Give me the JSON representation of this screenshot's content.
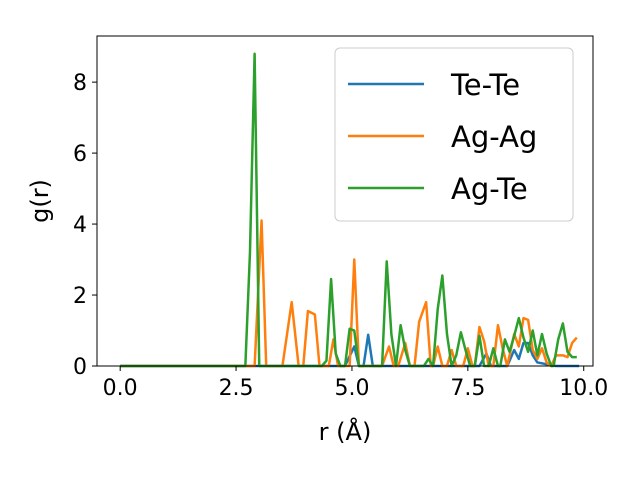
{
  "chart_data": {
    "type": "line",
    "xlabel": "r (Å)",
    "ylabel": "g(r)",
    "xlim": [
      -0.5,
      10.2
    ],
    "ylim": [
      0,
      9.3
    ],
    "xticks": [
      0.0,
      2.5,
      5.0,
      7.5,
      10.0
    ],
    "xtick_labels": [
      "0.0",
      "2.5",
      "5.0",
      "7.5",
      "10.0"
    ],
    "yticks": [
      0,
      2,
      4,
      6,
      8
    ],
    "ytick_labels": [
      "0",
      "2",
      "4",
      "6",
      "8"
    ],
    "grid": false,
    "legend_position": "top-right",
    "series": [
      {
        "name": "Te-Te",
        "color": "#1f77b4",
        "points": [
          [
            0.0,
            0
          ],
          [
            4.85,
            0
          ],
          [
            5.05,
            0.55
          ],
          [
            5.15,
            0
          ],
          [
            5.25,
            0
          ],
          [
            5.35,
            0.88
          ],
          [
            5.45,
            0
          ],
          [
            7.75,
            0
          ],
          [
            7.9,
            0.35
          ],
          [
            8.0,
            0
          ],
          [
            8.35,
            0
          ],
          [
            8.5,
            0.45
          ],
          [
            8.6,
            0.2
          ],
          [
            8.7,
            0.65
          ],
          [
            8.8,
            0.65
          ],
          [
            8.9,
            0.3
          ],
          [
            9.0,
            0.1
          ],
          [
            9.2,
            0.05
          ],
          [
            9.4,
            0
          ],
          [
            9.9,
            0
          ]
        ]
      },
      {
        "name": "Ag-Ag",
        "color": "#ff7f0e",
        "points": [
          [
            0.0,
            0
          ],
          [
            2.9,
            0
          ],
          [
            3.05,
            4.1
          ],
          [
            3.15,
            0
          ],
          [
            3.5,
            0
          ],
          [
            3.7,
            1.8
          ],
          [
            3.85,
            0
          ],
          [
            3.95,
            0
          ],
          [
            4.05,
            1.55
          ],
          [
            4.2,
            1.45
          ],
          [
            4.3,
            0
          ],
          [
            4.5,
            0
          ],
          [
            4.6,
            0.75
          ],
          [
            4.7,
            0
          ],
          [
            4.95,
            0
          ],
          [
            5.05,
            3.0
          ],
          [
            5.15,
            0
          ],
          [
            5.65,
            0
          ],
          [
            5.8,
            0.55
          ],
          [
            5.9,
            0
          ],
          [
            6.0,
            0
          ],
          [
            6.15,
            0.65
          ],
          [
            6.25,
            0
          ],
          [
            6.35,
            0
          ],
          [
            6.45,
            1.25
          ],
          [
            6.6,
            1.8
          ],
          [
            6.7,
            0
          ],
          [
            6.75,
            0
          ],
          [
            6.85,
            0.55
          ],
          [
            6.95,
            0
          ],
          [
            7.05,
            0
          ],
          [
            7.15,
            0.45
          ],
          [
            7.25,
            0
          ],
          [
            7.4,
            0
          ],
          [
            7.5,
            0.5
          ],
          [
            7.6,
            0
          ],
          [
            7.65,
            0
          ],
          [
            7.75,
            1.1
          ],
          [
            7.85,
            0.7
          ],
          [
            7.95,
            0
          ],
          [
            8.05,
            0
          ],
          [
            8.15,
            1.15
          ],
          [
            8.25,
            0.5
          ],
          [
            8.35,
            0
          ],
          [
            8.5,
            0.9
          ],
          [
            8.6,
            0.55
          ],
          [
            8.7,
            1.35
          ],
          [
            8.8,
            1.3
          ],
          [
            8.9,
            0.45
          ],
          [
            9.0,
            0.2
          ],
          [
            9.1,
            0.5
          ],
          [
            9.2,
            0.1
          ],
          [
            9.3,
            0
          ],
          [
            9.4,
            0.3
          ],
          [
            9.55,
            0.3
          ],
          [
            9.65,
            0.25
          ],
          [
            9.75,
            0.65
          ],
          [
            9.85,
            0.8
          ]
        ]
      },
      {
        "name": "Ag-Te",
        "color": "#2ca02c",
        "points": [
          [
            0.0,
            0
          ],
          [
            2.7,
            0
          ],
          [
            2.8,
            3.2
          ],
          [
            2.9,
            8.8
          ],
          [
            3.0,
            0
          ],
          [
            4.35,
            0
          ],
          [
            4.45,
            0.15
          ],
          [
            4.55,
            2.45
          ],
          [
            4.65,
            0.35
          ],
          [
            4.75,
            0
          ],
          [
            4.85,
            0
          ],
          [
            4.95,
            1.05
          ],
          [
            5.05,
            1.0
          ],
          [
            5.15,
            0
          ],
          [
            5.65,
            0
          ],
          [
            5.75,
            2.95
          ],
          [
            5.85,
            0.9
          ],
          [
            5.95,
            0
          ],
          [
            6.05,
            1.15
          ],
          [
            6.15,
            0.45
          ],
          [
            6.25,
            0
          ],
          [
            6.55,
            0
          ],
          [
            6.65,
            0.2
          ],
          [
            6.75,
            0
          ],
          [
            6.85,
            1.6
          ],
          [
            6.95,
            2.55
          ],
          [
            7.05,
            0.9
          ],
          [
            7.15,
            0
          ],
          [
            7.25,
            0.3
          ],
          [
            7.35,
            0.95
          ],
          [
            7.45,
            0.45
          ],
          [
            7.55,
            0
          ],
          [
            7.65,
            0
          ],
          [
            7.75,
            0.85
          ],
          [
            7.85,
            0
          ],
          [
            7.95,
            0
          ],
          [
            8.05,
            0.5
          ],
          [
            8.15,
            0
          ],
          [
            8.2,
            0
          ],
          [
            8.3,
            0.75
          ],
          [
            8.4,
            0.4
          ],
          [
            8.5,
            0.85
          ],
          [
            8.6,
            1.35
          ],
          [
            8.7,
            0.8
          ],
          [
            8.8,
            0.4
          ],
          [
            8.9,
            1.0
          ],
          [
            9.0,
            0.3
          ],
          [
            9.1,
            0.9
          ],
          [
            9.2,
            0.35
          ],
          [
            9.3,
            0
          ],
          [
            9.35,
            0
          ],
          [
            9.45,
            0.75
          ],
          [
            9.55,
            1.2
          ],
          [
            9.65,
            0.4
          ],
          [
            9.75,
            0.25
          ],
          [
            9.85,
            0.25
          ]
        ]
      }
    ]
  }
}
